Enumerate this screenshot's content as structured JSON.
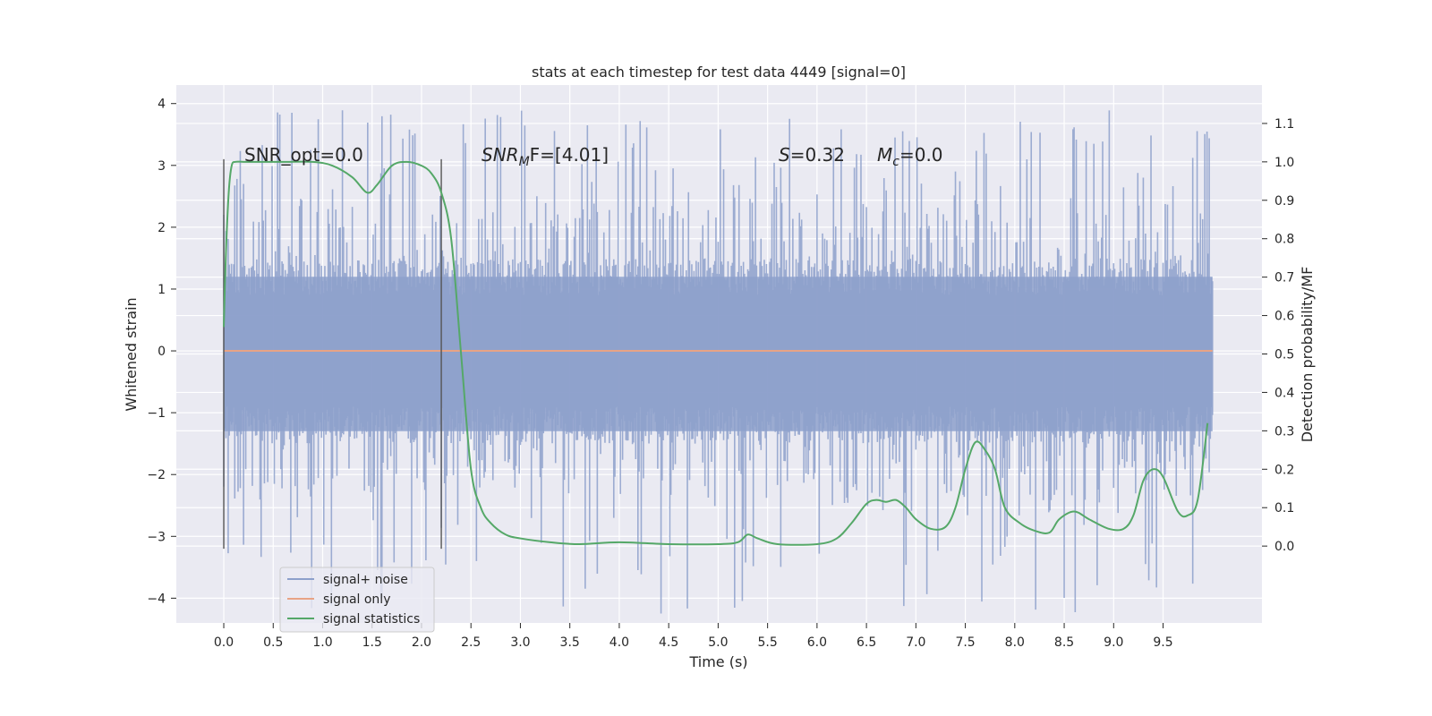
{
  "chart_data": {
    "type": "line",
    "title": "stats at each timestep for test data 4449 [signal=0]",
    "xlabel": "Time (s)",
    "ylabel": "Whitened strain",
    "y2label": "Detection probability/MF",
    "xlim": [
      -0.48,
      10.5
    ],
    "ylim": [
      -4.4,
      4.3
    ],
    "y2lim": [
      -0.2,
      1.2
    ],
    "x_ticks": [
      "0.0",
      "0.5",
      "1.0",
      "1.5",
      "2.0",
      "2.5",
      "3.0",
      "3.5",
      "4.0",
      "4.5",
      "5.0",
      "5.5",
      "6.0",
      "6.5",
      "7.0",
      "7.5",
      "8.0",
      "8.5",
      "9.0",
      "9.5"
    ],
    "y_ticks": [
      "4",
      "3",
      "2",
      "1",
      "0",
      "−1",
      "−2",
      "−3",
      "−4"
    ],
    "y2_ticks": [
      "1.1",
      "1.0",
      "0.9",
      "0.8",
      "0.7",
      "0.6",
      "0.5",
      "0.4",
      "0.3",
      "0.2",
      "0.1",
      "0.0"
    ],
    "grid": true,
    "legend_position": "lower-left",
    "colors": {
      "background": "#eaeaf2",
      "grid": "#ffffff",
      "noise": "#8da0cb",
      "signal": "#e8a385",
      "stats": "#55a868",
      "vline": "#555555"
    },
    "series": [
      {
        "name": "signal+ noise",
        "kind": "noise",
        "x_range": [
          0.0,
          10.0
        ],
        "typical_amplitude": 1.2,
        "peak_amplitude": 3.9
      },
      {
        "name": "signal only",
        "kind": "flat",
        "x": [
          0.0,
          10.0
        ],
        "values": [
          0.0,
          0.0
        ]
      },
      {
        "name": "signal statistics",
        "kind": "probability",
        "x": [
          0.0,
          0.02,
          0.05,
          0.08,
          0.12,
          0.2,
          0.35,
          0.6,
          0.9,
          1.1,
          1.3,
          1.45,
          1.55,
          1.7,
          1.85,
          2.0,
          2.1,
          2.2,
          2.3,
          2.4,
          2.5,
          2.6,
          2.7,
          2.85,
          3.0,
          3.3,
          3.6,
          4.0,
          4.5,
          5.0,
          5.2,
          5.3,
          5.4,
          5.6,
          6.0,
          6.2,
          6.35,
          6.5,
          6.6,
          6.7,
          6.8,
          6.9,
          7.0,
          7.15,
          7.3,
          7.4,
          7.5,
          7.6,
          7.7,
          7.8,
          7.9,
          8.05,
          8.2,
          8.35,
          8.45,
          8.6,
          8.75,
          8.95,
          9.1,
          9.2,
          9.3,
          9.4,
          9.5,
          9.65,
          9.75,
          9.85,
          9.95
        ],
        "values": [
          0.57,
          0.75,
          0.92,
          0.99,
          1.0,
          1.0,
          1.0,
          1.0,
          1.0,
          0.99,
          0.96,
          0.92,
          0.94,
          0.99,
          1.0,
          0.99,
          0.97,
          0.92,
          0.8,
          0.5,
          0.2,
          0.1,
          0.06,
          0.03,
          0.02,
          0.01,
          0.005,
          0.01,
          0.005,
          0.005,
          0.01,
          0.03,
          0.02,
          0.005,
          0.005,
          0.02,
          0.06,
          0.11,
          0.12,
          0.115,
          0.12,
          0.1,
          0.07,
          0.045,
          0.05,
          0.1,
          0.2,
          0.27,
          0.25,
          0.2,
          0.1,
          0.06,
          0.04,
          0.035,
          0.07,
          0.09,
          0.07,
          0.045,
          0.045,
          0.08,
          0.17,
          0.2,
          0.18,
          0.09,
          0.08,
          0.12,
          0.32
        ]
      }
    ],
    "vlines": [
      {
        "x": 0.0,
        "y": [
          -3.2,
          3.1
        ]
      },
      {
        "x": 2.2,
        "y": [
          -3.2,
          3.1
        ]
      }
    ],
    "annotations": [
      {
        "id": "snr-opt",
        "text": "SNR_opt=0.0"
      },
      {
        "id": "snr-mf",
        "base": "SNR",
        "sub": "M",
        "after": "F=[4.01]"
      },
      {
        "id": "s-val",
        "base": "S",
        "after": "=0.32"
      },
      {
        "id": "mc-val",
        "base": "M",
        "sub": "c",
        "after": "=0.0"
      }
    ]
  }
}
